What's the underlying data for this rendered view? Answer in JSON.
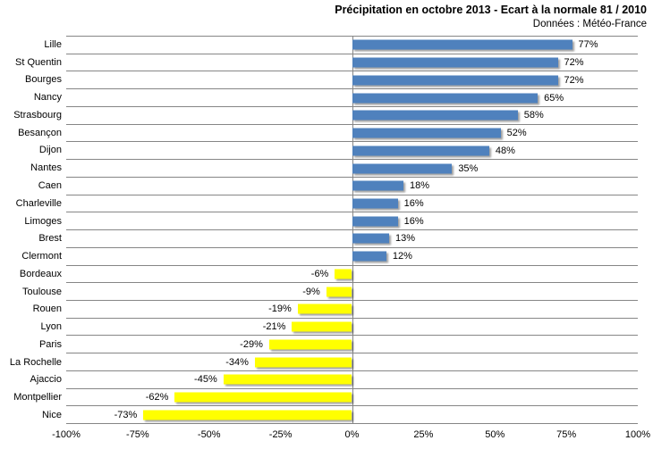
{
  "header": {
    "title": "Précipitation en octobre 2013 - Ecart à la normale 81 / 2010",
    "subtitle": "Données : Météo-France"
  },
  "chart_data": {
    "type": "bar",
    "orientation": "horizontal",
    "title": "Précipitation en octobre 2013 - Ecart à la normale 81 / 2010",
    "subtitle": "Données : Météo-France",
    "categories": [
      "Lille",
      "St Quentin",
      "Bourges",
      "Nancy",
      "Strasbourg",
      "Besançon",
      "Dijon",
      "Nantes",
      "Caen",
      "Charleville",
      "Limoges",
      "Brest",
      "Clermont",
      "Bordeaux",
      "Toulouse",
      "Rouen",
      "Lyon",
      "Paris",
      "La Rochelle",
      "Ajaccio",
      "Montpellier",
      "Nice"
    ],
    "values": [
      77,
      72,
      72,
      65,
      58,
      52,
      48,
      35,
      18,
      16,
      16,
      13,
      12,
      -6,
      -9,
      -19,
      -21,
      -29,
      -34,
      -45,
      -62,
      -73
    ],
    "value_labels": [
      "77%",
      "72%",
      "72%",
      "65%",
      "58%",
      "52%",
      "48%",
      "35%",
      "18%",
      "16%",
      "16%",
      "13%",
      "12%",
      "-6%",
      "-9%",
      "-19%",
      "-21%",
      "-29%",
      "-34%",
      "-45%",
      "-62%",
      "-73%"
    ],
    "xlabel": "",
    "ylabel": "",
    "xlim": [
      -100,
      100
    ],
    "x_tick_values": [
      -100,
      -75,
      -50,
      -25,
      0,
      25,
      50,
      75,
      100
    ],
    "x_ticks": [
      "-100%",
      "-75%",
      "-50%",
      "-25%",
      "0%",
      "25%",
      "50%",
      "75%",
      "100%"
    ],
    "legend": "none",
    "grid": "horizontal category separators + zero axis line",
    "colors": {
      "positive_bar": "#4F81BD",
      "negative_bar": "#FFFF00",
      "gridline": "#868686",
      "text": "#000000",
      "background": "#FFFFFF"
    }
  }
}
